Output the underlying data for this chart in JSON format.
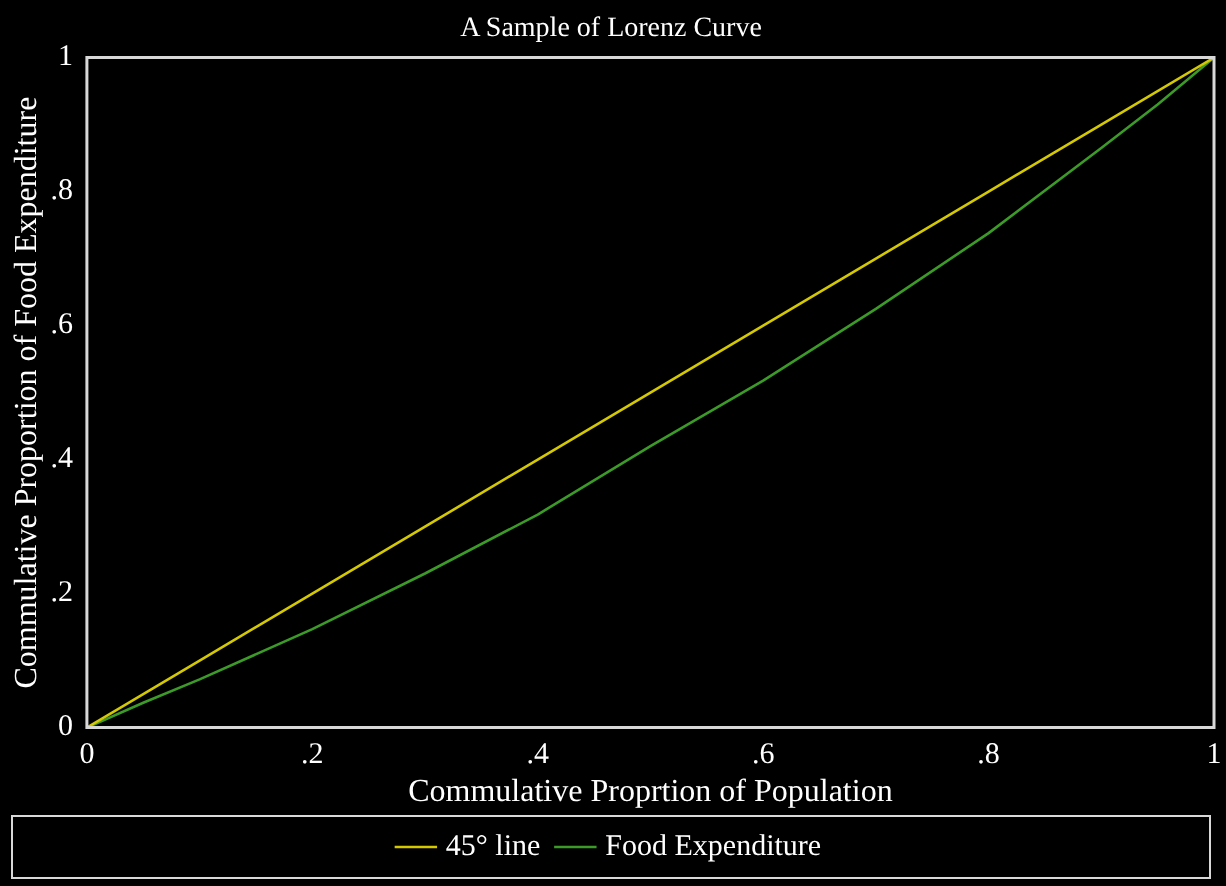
{
  "chart_data": {
    "type": "line",
    "title": "A Sample of Lorenz Curve",
    "xlabel": "Commulative Proprtion of Population",
    "ylabel": "Commulative Proportion of Food Expenditure",
    "series": [
      {
        "name": "45° line",
        "color": "#d4c800",
        "x": [
          0,
          0.1,
          0.2,
          0.3,
          0.4,
          0.5,
          0.6,
          0.7,
          0.8,
          0.9,
          1
        ],
        "values": [
          0,
          0.1,
          0.2,
          0.3,
          0.4,
          0.5,
          0.6,
          0.7,
          0.8,
          0.9,
          1
        ]
      },
      {
        "name": "Food Expenditure",
        "color": "#3c9a28",
        "x": [
          0,
          0.05,
          0.1,
          0.2,
          0.3,
          0.4,
          0.5,
          0.6,
          0.7,
          0.8,
          0.9,
          0.95,
          1
        ],
        "values": [
          0,
          0.037,
          0.072,
          0.147,
          0.23,
          0.318,
          0.42,
          0.518,
          0.625,
          0.738,
          0.865,
          0.93,
          1
        ]
      }
    ],
    "xlim": [
      0,
      1
    ],
    "ylim": [
      0,
      1
    ],
    "xticks": [
      0,
      {
        "value": 0.2,
        "label": ".2"
      },
      {
        "value": 0.4,
        "label": ".4"
      },
      {
        "value": 0.6,
        "label": ".6"
      },
      {
        "value": 0.8,
        "label": ".8"
      },
      1
    ],
    "yticks": [
      0,
      {
        "value": 0.2,
        "label": ".2"
      },
      {
        "value": 0.4,
        "label": ".4"
      },
      {
        "value": 0.6,
        "label": ".6"
      },
      {
        "value": 0.8,
        "label": ".8"
      },
      1
    ],
    "grid": false,
    "legend": "bottom",
    "marker": "none",
    "line_style": "solid"
  }
}
